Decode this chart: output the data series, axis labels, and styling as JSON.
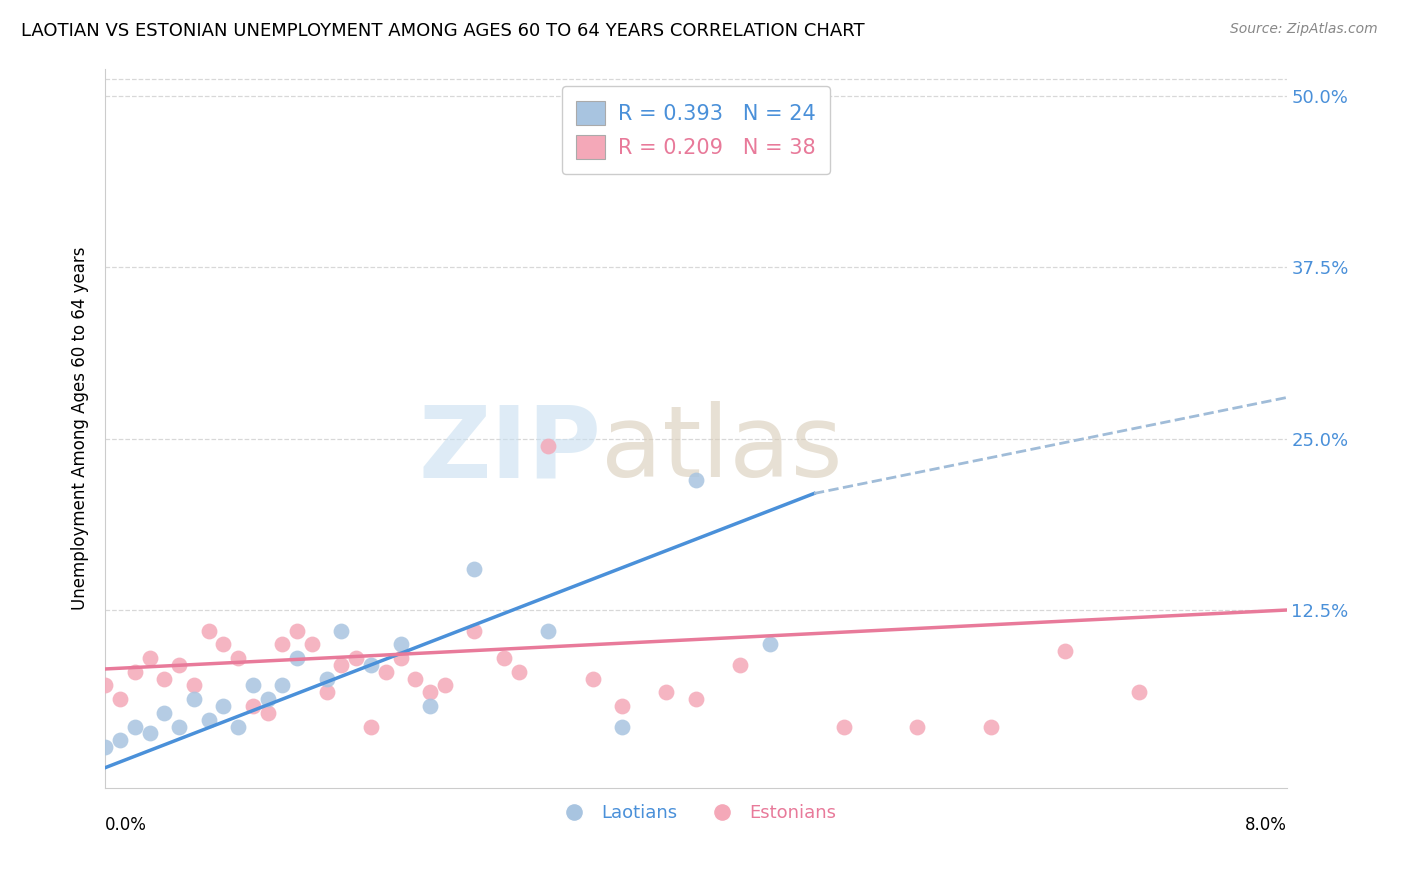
{
  "title": "LAOTIAN VS ESTONIAN UNEMPLOYMENT AMONG AGES 60 TO 64 YEARS CORRELATION CHART",
  "source": "Source: ZipAtlas.com",
  "ylabel": "Unemployment Among Ages 60 to 64 years",
  "ytick_labels": [
    "",
    "12.5%",
    "25.0%",
    "37.5%",
    "50.0%"
  ],
  "ytick_values": [
    0,
    0.125,
    0.25,
    0.375,
    0.5
  ],
  "xmin": 0.0,
  "xmax": 0.08,
  "ymin": -0.005,
  "ymax": 0.52,
  "laotian_R": 0.393,
  "laotian_N": 24,
  "estonian_R": 0.209,
  "estonian_N": 38,
  "laotian_color": "#a8c4e0",
  "estonian_color": "#f4a8b8",
  "laotian_line_color": "#4a90d9",
  "estonian_line_color": "#e87a9a",
  "laotian_dash_color": "#a0bcd8",
  "title_fontsize": 13,
  "source_fontsize": 10,
  "background_color": "#ffffff",
  "grid_color": "#d8d8d8",
  "laotian_x": [
    0.0,
    0.001,
    0.002,
    0.003,
    0.004,
    0.005,
    0.006,
    0.007,
    0.008,
    0.009,
    0.01,
    0.011,
    0.012,
    0.013,
    0.015,
    0.016,
    0.018,
    0.02,
    0.022,
    0.025,
    0.03,
    0.035,
    0.04,
    0.045
  ],
  "laotian_y": [
    0.025,
    0.03,
    0.04,
    0.035,
    0.05,
    0.04,
    0.06,
    0.045,
    0.055,
    0.04,
    0.07,
    0.06,
    0.07,
    0.09,
    0.075,
    0.11,
    0.085,
    0.1,
    0.055,
    0.155,
    0.11,
    0.04,
    0.22,
    0.1
  ],
  "estonian_x": [
    0.0,
    0.001,
    0.002,
    0.003,
    0.004,
    0.005,
    0.006,
    0.007,
    0.008,
    0.009,
    0.01,
    0.011,
    0.012,
    0.013,
    0.014,
    0.015,
    0.016,
    0.017,
    0.018,
    0.019,
    0.02,
    0.021,
    0.022,
    0.023,
    0.025,
    0.027,
    0.028,
    0.03,
    0.033,
    0.035,
    0.038,
    0.04,
    0.043,
    0.05,
    0.055,
    0.06,
    0.065,
    0.07
  ],
  "estonian_y": [
    0.07,
    0.06,
    0.08,
    0.09,
    0.075,
    0.085,
    0.07,
    0.11,
    0.1,
    0.09,
    0.055,
    0.05,
    0.1,
    0.11,
    0.1,
    0.065,
    0.085,
    0.09,
    0.04,
    0.08,
    0.09,
    0.075,
    0.065,
    0.07,
    0.11,
    0.09,
    0.08,
    0.245,
    0.075,
    0.055,
    0.065,
    0.06,
    0.085,
    0.04,
    0.04,
    0.04,
    0.095,
    0.065
  ],
  "laotian_line_start": 0.0,
  "laotian_line_end_solid": 0.048,
  "laotian_line_end_dash": 0.08,
  "laotian_line_y0": 0.01,
  "laotian_line_y1": 0.21,
  "laotian_line_y2": 0.28,
  "estonian_line_y0": 0.082,
  "estonian_line_y1": 0.125
}
